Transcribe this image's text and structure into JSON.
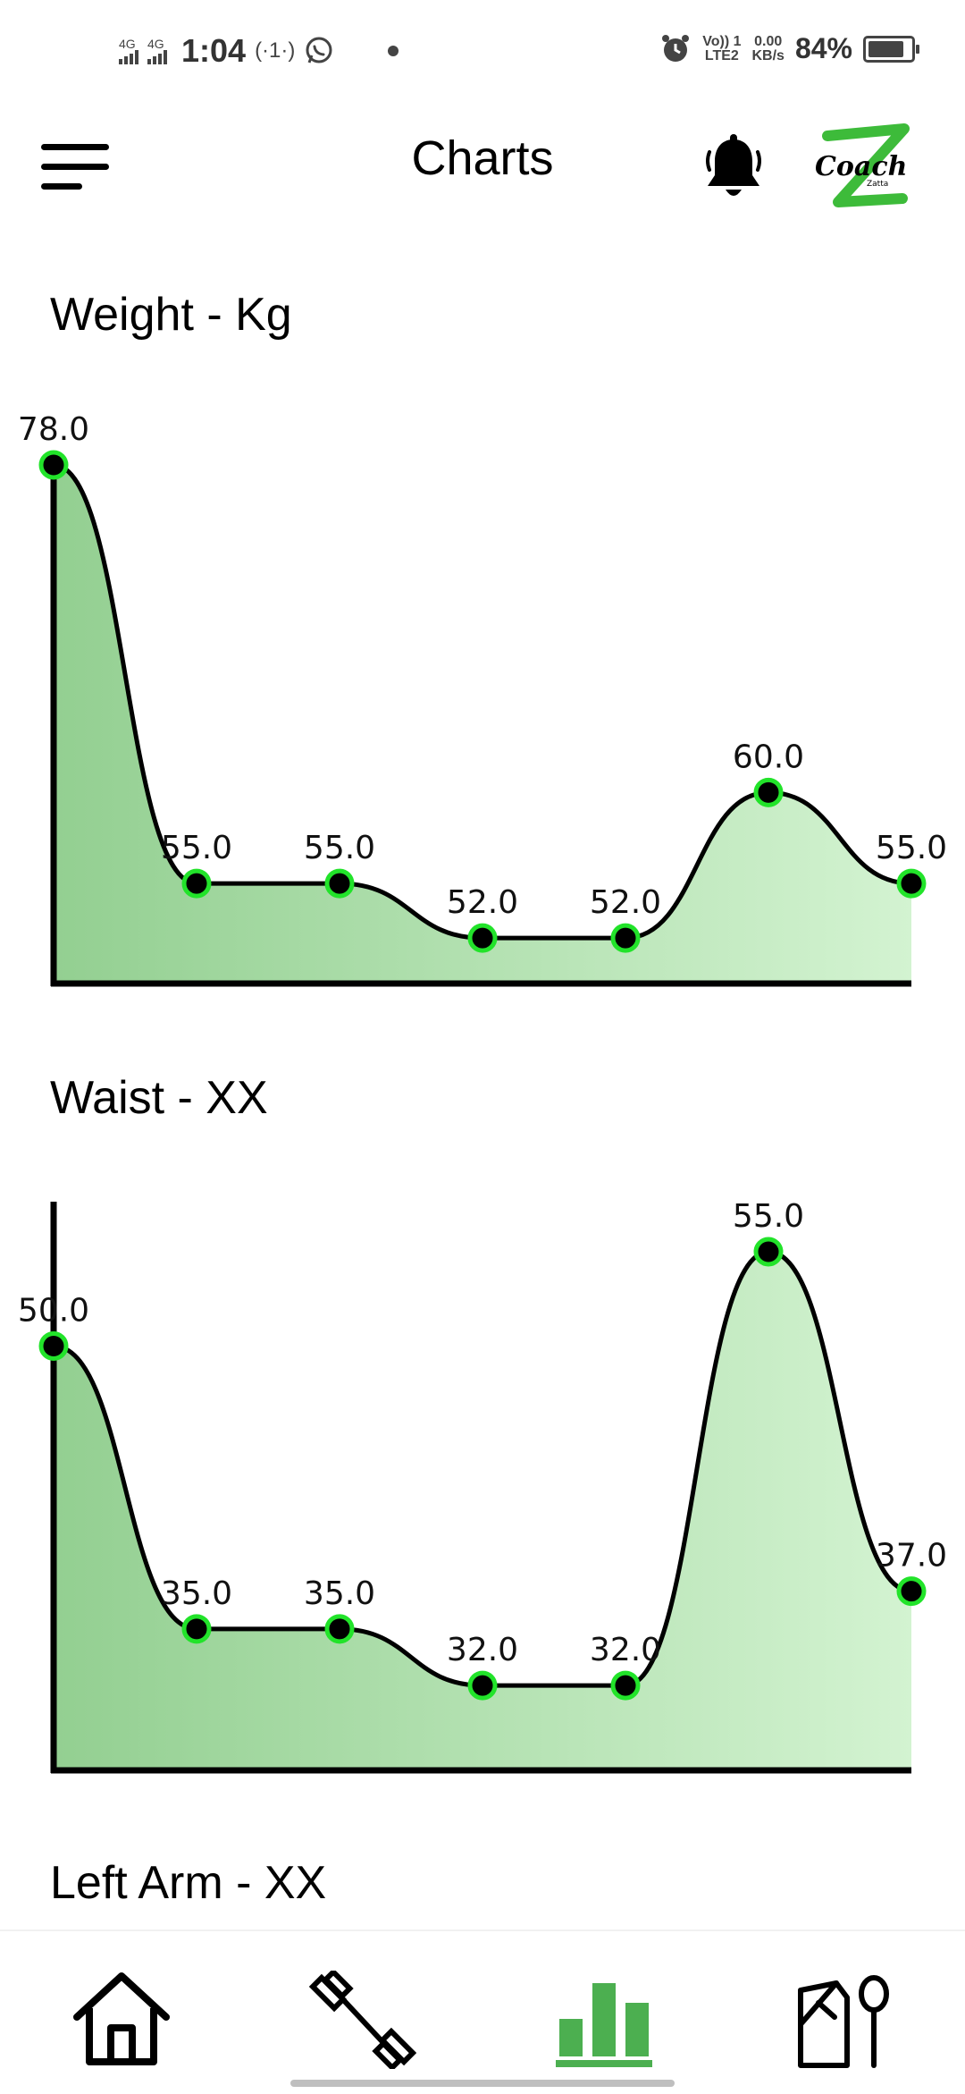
{
  "status_bar": {
    "time": "1:04",
    "net1": "4G",
    "net2": "4G",
    "hotspot_icon": "(·1·)",
    "lte_line1": "Vo)) 1",
    "lte_line2": "LTE2",
    "speed_line1": "0.00",
    "speed_line2": "KB/s",
    "battery_text": "84%",
    "battery_level": 84
  },
  "header": {
    "title": "Charts",
    "menu_icon": "hamburger-menu-icon",
    "bell_icon": "bell-icon",
    "logo_text": "Coach",
    "logo_subtext": "Zatta"
  },
  "charts": [
    {
      "title": "Weight - Kg",
      "chart_data": {
        "type": "area",
        "values": [
          78.0,
          55.0,
          55.0,
          52.0,
          52.0,
          60.0,
          55.0
        ],
        "labels": [
          "78.0",
          "55.0",
          "55.0",
          "52.0",
          "52.0",
          "60.0",
          "55.0"
        ],
        "ylim": [
          49.5,
          78.0
        ],
        "grid": false
      }
    },
    {
      "title": "Waist - XX",
      "chart_data": {
        "type": "area",
        "values": [
          50.0,
          35.0,
          35.0,
          32.0,
          32.0,
          55.0,
          37.0
        ],
        "labels": [
          "50.0",
          "35.0",
          "35.0",
          "32.0",
          "32.0",
          "55.0",
          "37.0"
        ],
        "ylim": [
          27.5,
          55.0
        ],
        "grid": false
      }
    }
  ],
  "next_section_title": "Left Arm - XX",
  "colors": {
    "area_start": "#93cf91",
    "area_end": "#d3f3d1",
    "point_ring": "#22e32a",
    "nav_active": "#4caf50"
  },
  "bottom_nav": [
    {
      "name": "home",
      "icon": "home-icon"
    },
    {
      "name": "workouts",
      "icon": "dumbbell-icon"
    },
    {
      "name": "charts",
      "icon": "bar-chart-icon",
      "active": true
    },
    {
      "name": "nutrition",
      "icon": "diet-icon"
    }
  ]
}
